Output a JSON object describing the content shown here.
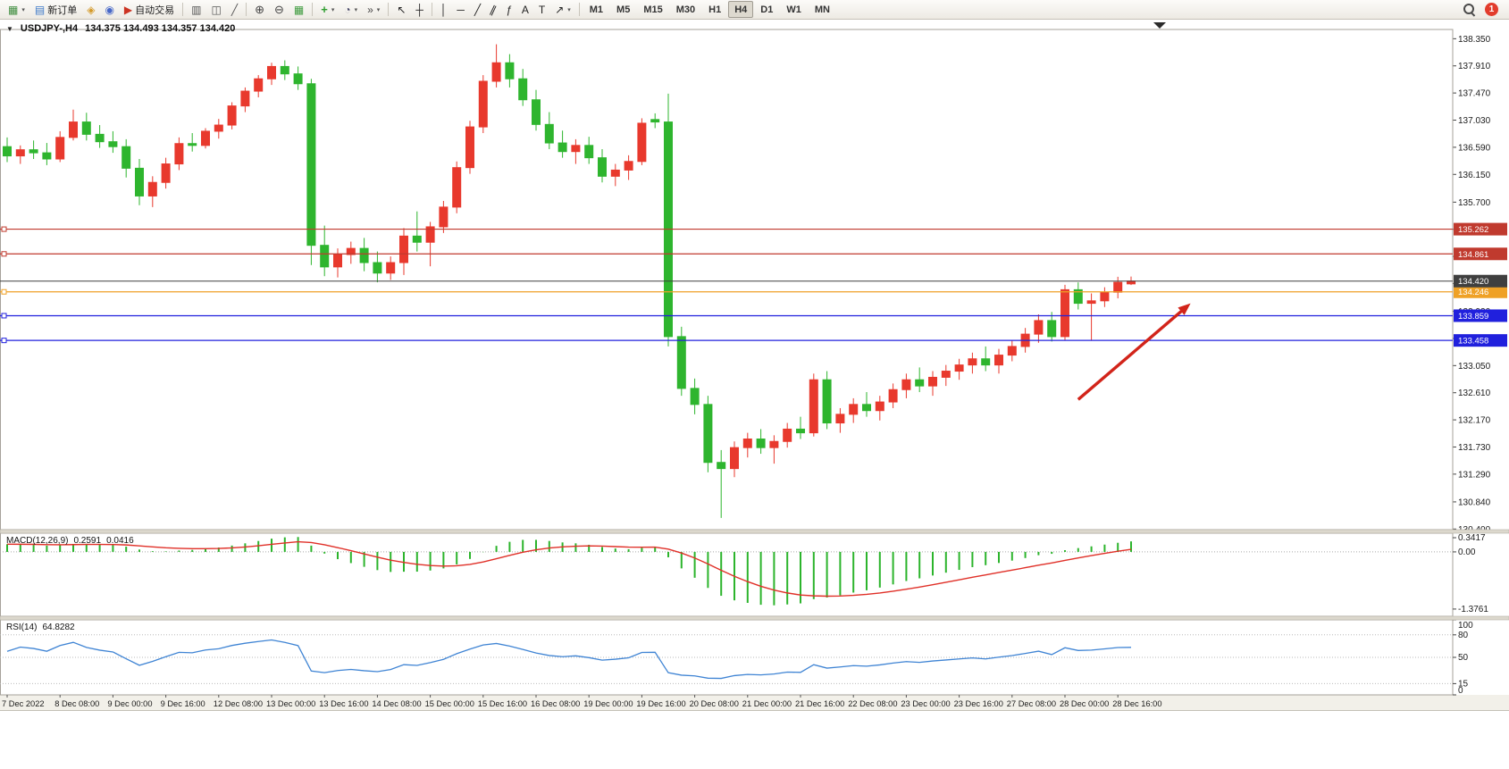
{
  "toolbar": {
    "new_order_label": "新订单",
    "autotrade_label": "自动交易",
    "timeframes": [
      "M1",
      "M5",
      "M15",
      "M30",
      "H1",
      "H4",
      "D1",
      "W1",
      "MN"
    ],
    "active_timeframe": "H4",
    "notification_count": "1"
  },
  "icons": {
    "dropdown": "▾",
    "new_chart": "▦",
    "new_order": "▤",
    "compass": "◈",
    "profiles": "◉",
    "autotrade": "▶",
    "bar_chart": "▥",
    "candle_chart": "◫",
    "line_chart": "╱",
    "zoom_in": "⊕",
    "zoom_out": "⊖",
    "tile_windows": "▦",
    "add_indicator": "+",
    "clock": "◔",
    "shift": "»",
    "cursor": "↖",
    "crosshair": "┼",
    "vline": "│",
    "hline": "─",
    "trendline": "╱",
    "channel": "∥",
    "fibonacci": "ƒ",
    "text": "A",
    "text_label": "T",
    "arrows": "↗",
    "one_click": "▼"
  },
  "chart": {
    "title_symbol": "USDJPY-,H4",
    "title_ohlc": "134.375 134.493 134.357 134.420",
    "price_axis_labels": [
      "138.350",
      "137.910",
      "137.470",
      "137.030",
      "136.590",
      "136.150",
      "135.700",
      "135.260",
      "134.820",
      "134.380",
      "133.930",
      "133.490",
      "133.050",
      "132.610",
      "132.170",
      "131.730",
      "131.290",
      "130.840",
      "130.400"
    ],
    "time_axis_labels": [
      "7 Dec 2022",
      "8 Dec 08:00",
      "9 Dec 00:00",
      "9 Dec 16:00",
      "12 Dec 08:00",
      "13 Dec 00:00",
      "13 Dec 16:00",
      "14 Dec 08:00",
      "15 Dec 00:00",
      "15 Dec 16:00",
      "16 Dec 08:00",
      "19 Dec 00:00",
      "19 Dec 16:00",
      "20 Dec 08:00",
      "21 Dec 00:00",
      "21 Dec 16:00",
      "22 Dec 08:00",
      "23 Dec 00:00",
      "23 Dec 16:00",
      "27 Dec 08:00",
      "28 Dec 00:00",
      "28 Dec 16:00"
    ],
    "lines": [
      {
        "id": "resistance-upper",
        "price": 135.262,
        "label": "135.262",
        "color": "#c03a2e"
      },
      {
        "id": "resistance-lower",
        "price": 134.861,
        "label": "134.861",
        "color": "#c03a2e"
      },
      {
        "id": "pivot-orange",
        "price": 134.246,
        "label": "134.246",
        "color": "#efa126"
      },
      {
        "id": "support-upper",
        "price": 133.859,
        "label": "133.859",
        "color": "#2020dd"
      },
      {
        "id": "support-lower",
        "price": 133.458,
        "label": "133.458",
        "color": "#2020dd"
      }
    ],
    "bid_line": {
      "price": 134.42,
      "label": "134.420",
      "color": "#3f3f3f"
    },
    "arrow": {
      "from_bar": 81,
      "from_price": 132.5,
      "to_bar": 89.5,
      "to_price": 134.06,
      "color": "#d2241a"
    }
  },
  "chart_data": {
    "type": "candlestick",
    "symbol": "USDJPY-",
    "period": "H4",
    "ylim": [
      130.39,
      138.5
    ],
    "bull_color": "#e8392d",
    "bear_color": "#2eb52e",
    "ohlc": [
      [
        136.6,
        136.75,
        136.35,
        136.45
      ],
      [
        136.45,
        136.62,
        136.32,
        136.55
      ],
      [
        136.55,
        136.7,
        136.4,
        136.5
      ],
      [
        136.5,
        136.66,
        136.3,
        136.4
      ],
      [
        136.4,
        136.85,
        136.35,
        136.75
      ],
      [
        136.75,
        137.2,
        136.7,
        137.0
      ],
      [
        137.0,
        137.15,
        136.7,
        136.8
      ],
      [
        136.8,
        136.95,
        136.58,
        136.68
      ],
      [
        136.68,
        136.85,
        136.5,
        136.6
      ],
      [
        136.6,
        136.72,
        136.1,
        136.25
      ],
      [
        136.25,
        136.4,
        135.65,
        135.8
      ],
      [
        135.8,
        136.12,
        135.62,
        136.02
      ],
      [
        136.02,
        136.42,
        135.92,
        136.32
      ],
      [
        136.32,
        136.75,
        136.22,
        136.65
      ],
      [
        136.65,
        136.82,
        136.52,
        136.62
      ],
      [
        136.62,
        136.9,
        136.57,
        136.85
      ],
      [
        136.85,
        137.05,
        136.73,
        136.95
      ],
      [
        136.95,
        137.32,
        136.88,
        137.26
      ],
      [
        137.26,
        137.56,
        137.16,
        137.5
      ],
      [
        137.5,
        137.76,
        137.4,
        137.7
      ],
      [
        137.7,
        137.96,
        137.6,
        137.9
      ],
      [
        137.9,
        138.0,
        137.68,
        137.78
      ],
      [
        137.78,
        137.9,
        137.52,
        137.62
      ],
      [
        137.62,
        137.7,
        134.68,
        135.0
      ],
      [
        135.0,
        135.32,
        134.5,
        134.65
      ],
      [
        134.65,
        134.95,
        134.48,
        134.85
      ],
      [
        134.85,
        135.06,
        134.7,
        134.95
      ],
      [
        134.95,
        135.12,
        134.58,
        134.72
      ],
      [
        134.72,
        134.9,
        134.4,
        134.55
      ],
      [
        134.55,
        134.82,
        134.44,
        134.72
      ],
      [
        134.72,
        135.28,
        134.52,
        135.15
      ],
      [
        135.15,
        135.55,
        134.9,
        135.05
      ],
      [
        135.05,
        135.38,
        134.66,
        135.3
      ],
      [
        135.3,
        135.72,
        135.2,
        135.62
      ],
      [
        135.62,
        136.36,
        135.52,
        136.26
      ],
      [
        136.26,
        137.02,
        136.16,
        136.92
      ],
      [
        136.92,
        137.76,
        136.82,
        137.66
      ],
      [
        137.66,
        138.26,
        137.56,
        137.96
      ],
      [
        137.96,
        138.1,
        137.56,
        137.7
      ],
      [
        137.7,
        137.86,
        137.26,
        137.36
      ],
      [
        137.36,
        137.52,
        136.86,
        136.96
      ],
      [
        136.96,
        137.16,
        136.56,
        136.66
      ],
      [
        136.66,
        136.86,
        136.42,
        136.52
      ],
      [
        136.52,
        136.72,
        136.32,
        136.62
      ],
      [
        136.62,
        136.76,
        136.32,
        136.42
      ],
      [
        136.42,
        136.56,
        136.02,
        136.12
      ],
      [
        136.12,
        136.32,
        135.96,
        136.22
      ],
      [
        136.22,
        136.46,
        136.06,
        136.36
      ],
      [
        136.36,
        137.06,
        136.3,
        136.98
      ],
      [
        137.04,
        137.14,
        136.9,
        137.0
      ],
      [
        137.0,
        137.46,
        133.36,
        133.52
      ],
      [
        133.52,
        133.68,
        132.56,
        132.68
      ],
      [
        132.68,
        132.84,
        132.26,
        132.42
      ],
      [
        132.42,
        132.56,
        131.32,
        131.48
      ],
      [
        131.48,
        131.68,
        130.58,
        131.38
      ],
      [
        131.38,
        131.82,
        131.24,
        131.72
      ],
      [
        131.72,
        131.96,
        131.56,
        131.86
      ],
      [
        131.86,
        132.02,
        131.62,
        131.72
      ],
      [
        131.72,
        131.92,
        131.46,
        131.82
      ],
      [
        131.82,
        132.12,
        131.72,
        132.02
      ],
      [
        132.02,
        132.22,
        131.86,
        131.96
      ],
      [
        131.96,
        132.92,
        131.9,
        132.82
      ],
      [
        132.82,
        132.96,
        132.02,
        132.12
      ],
      [
        132.12,
        132.36,
        131.96,
        132.26
      ],
      [
        132.26,
        132.52,
        132.12,
        132.42
      ],
      [
        132.42,
        132.62,
        132.22,
        132.32
      ],
      [
        132.32,
        132.56,
        132.16,
        132.46
      ],
      [
        132.46,
        132.76,
        132.36,
        132.66
      ],
      [
        132.66,
        132.92,
        132.52,
        132.82
      ],
      [
        132.82,
        133.02,
        132.62,
        132.72
      ],
      [
        132.72,
        132.96,
        132.56,
        132.86
      ],
      [
        132.86,
        133.06,
        132.72,
        132.96
      ],
      [
        132.96,
        133.16,
        132.82,
        133.06
      ],
      [
        133.06,
        133.26,
        132.92,
        133.16
      ],
      [
        133.16,
        133.36,
        132.96,
        133.06
      ],
      [
        133.06,
        133.32,
        132.92,
        133.22
      ],
      [
        133.22,
        133.46,
        133.12,
        133.36
      ],
      [
        133.36,
        133.66,
        133.26,
        133.56
      ],
      [
        133.56,
        133.88,
        133.42,
        133.78
      ],
      [
        133.78,
        133.92,
        133.44,
        133.52
      ],
      [
        133.52,
        134.36,
        133.46,
        134.28
      ],
      [
        134.28,
        134.4,
        133.96,
        134.06
      ],
      [
        134.06,
        134.22,
        133.46,
        134.1
      ],
      [
        134.1,
        134.32,
        134.0,
        134.24
      ],
      [
        134.24,
        134.49,
        134.14,
        134.4
      ],
      [
        134.375,
        134.493,
        134.357,
        134.42
      ]
    ]
  },
  "macd": {
    "label": "MACD(12,26,9)",
    "value_main": "0.2591",
    "value_signal": "0.0416",
    "axis_labels": [
      "0.3417",
      "0.00",
      "-1.3761"
    ],
    "hist_color": "#2cb42c",
    "signal_color": "#e03028",
    "ylim": [
      -1.55,
      0.45
    ]
  },
  "rsi": {
    "label": "RSI(14)",
    "value": "64.8282",
    "axis_labels": [
      "100",
      "80",
      "50",
      "15",
      "0"
    ],
    "levels": [
      80,
      50,
      15
    ],
    "line_color": "#3f84d4",
    "ylim": [
      0,
      100
    ]
  }
}
